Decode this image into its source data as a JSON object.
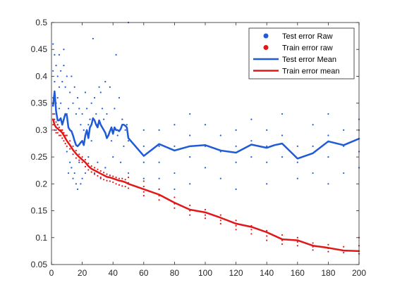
{
  "colors": {
    "test": "#1f5bd6",
    "train": "#e01818",
    "axis": "#262626",
    "background": "#ffffff"
  },
  "chart_data": {
    "type": "line",
    "title": "",
    "xlabel": "",
    "ylabel": "",
    "xlim": [
      0,
      200
    ],
    "ylim": [
      0.05,
      0.5
    ],
    "grid": false,
    "legend_position": "top-right",
    "x_ticks": [
      0,
      20,
      40,
      60,
      80,
      100,
      120,
      140,
      160,
      180,
      200
    ],
    "y_ticks": [
      0.05,
      0.1,
      0.15,
      0.2,
      0.25,
      0.3,
      0.35,
      0.4,
      0.45,
      0.5
    ],
    "legend": [
      {
        "label": "Test error Raw",
        "kind": "marker",
        "series": "test"
      },
      {
        "label": "Train error raw",
        "kind": "marker",
        "series": "train"
      },
      {
        "label": "Test error Mean",
        "kind": "line",
        "series": "test"
      },
      {
        "label": "Train error mean",
        "kind": "line",
        "series": "train"
      }
    ],
    "series": [
      {
        "name": "Test error Mean",
        "key": "test",
        "style": "line",
        "x": [
          1,
          2,
          3,
          4,
          5,
          6,
          7,
          8,
          9,
          10,
          11,
          12,
          13,
          14,
          15,
          16,
          17,
          18,
          19,
          20,
          21,
          22,
          23,
          24,
          25,
          26,
          27,
          28,
          29,
          30,
          31,
          32,
          33,
          34,
          35,
          36,
          37,
          38,
          39,
          40,
          41,
          42,
          43,
          44,
          45,
          46,
          47,
          48,
          49,
          50,
          60,
          70,
          80,
          90,
          100,
          110,
          120,
          130,
          140,
          145,
          150,
          160,
          170,
          180,
          190,
          200
        ],
        "y": [
          0.345,
          0.372,
          0.335,
          0.318,
          0.318,
          0.322,
          0.31,
          0.32,
          0.33,
          0.327,
          0.305,
          0.3,
          0.298,
          0.29,
          0.28,
          0.272,
          0.27,
          0.273,
          0.277,
          0.28,
          0.272,
          0.29,
          0.3,
          0.285,
          0.305,
          0.31,
          0.322,
          0.318,
          0.31,
          0.305,
          0.318,
          0.31,
          0.305,
          0.3,
          0.295,
          0.285,
          0.29,
          0.298,
          0.305,
          0.293,
          0.305,
          0.3,
          0.3,
          0.298,
          0.302,
          0.31,
          0.31,
          0.308,
          0.305,
          0.285,
          0.252,
          0.274,
          0.262,
          0.27,
          0.272,
          0.262,
          0.258,
          0.273,
          0.267,
          0.272,
          0.275,
          0.247,
          0.257,
          0.279,
          0.272,
          0.284
        ]
      },
      {
        "name": "Train error mean",
        "key": "train",
        "style": "line",
        "x": [
          1,
          2,
          3,
          4,
          5,
          6,
          7,
          8,
          9,
          10,
          12,
          14,
          16,
          18,
          20,
          22,
          24,
          26,
          28,
          30,
          32,
          34,
          36,
          38,
          40,
          42,
          44,
          46,
          48,
          50,
          60,
          70,
          80,
          90,
          100,
          110,
          120,
          130,
          140,
          150,
          160,
          170,
          180,
          190,
          200
        ],
        "y": [
          0.32,
          0.31,
          0.305,
          0.303,
          0.3,
          0.298,
          0.295,
          0.29,
          0.285,
          0.28,
          0.272,
          0.263,
          0.256,
          0.25,
          0.245,
          0.24,
          0.233,
          0.228,
          0.225,
          0.222,
          0.219,
          0.216,
          0.213,
          0.212,
          0.21,
          0.208,
          0.206,
          0.205,
          0.203,
          0.2,
          0.19,
          0.18,
          0.165,
          0.152,
          0.147,
          0.137,
          0.126,
          0.12,
          0.11,
          0.097,
          0.095,
          0.085,
          0.081,
          0.076,
          0.075
        ]
      },
      {
        "name": "Test error Raw",
        "key": "test",
        "style": "scatter",
        "x": [
          1,
          1,
          1,
          2,
          2,
          2,
          3,
          3,
          3,
          4,
          4,
          4,
          5,
          5,
          5,
          6,
          6,
          7,
          7,
          8,
          8,
          8,
          9,
          9,
          10,
          10,
          10,
          11,
          11,
          12,
          12,
          13,
          13,
          14,
          14,
          15,
          15,
          16,
          16,
          17,
          17,
          18,
          18,
          19,
          19,
          20,
          20,
          21,
          22,
          22,
          23,
          24,
          24,
          25,
          26,
          26,
          27,
          28,
          28,
          29,
          30,
          30,
          31,
          32,
          32,
          33,
          34,
          35,
          35,
          36,
          37,
          38,
          39,
          40,
          41,
          42,
          43,
          44,
          45,
          46,
          47,
          48,
          49,
          50,
          50,
          50,
          60,
          60,
          60,
          60,
          70,
          70,
          70,
          70,
          70,
          80,
          80,
          80,
          80,
          90,
          90,
          90,
          90,
          100,
          100,
          100,
          110,
          110,
          110,
          120,
          120,
          120,
          120,
          130,
          130,
          130,
          140,
          140,
          140,
          140,
          150,
          150,
          150,
          160,
          160,
          160,
          170,
          170,
          170,
          180,
          180,
          180,
          180,
          190,
          190,
          190,
          200,
          200,
          200,
          200
        ],
        "y": [
          0.46,
          0.41,
          0.36,
          0.44,
          0.39,
          0.33,
          0.42,
          0.35,
          0.3,
          0.4,
          0.36,
          0.31,
          0.44,
          0.38,
          0.34,
          0.41,
          0.35,
          0.39,
          0.3,
          0.45,
          0.42,
          0.32,
          0.38,
          0.29,
          0.4,
          0.33,
          0.26,
          0.34,
          0.22,
          0.37,
          0.24,
          0.4,
          0.23,
          0.35,
          0.21,
          0.38,
          0.22,
          0.33,
          0.2,
          0.36,
          0.19,
          0.34,
          0.24,
          0.31,
          0.2,
          0.33,
          0.21,
          0.3,
          0.37,
          0.22,
          0.34,
          0.31,
          0.25,
          0.32,
          0.35,
          0.28,
          0.47,
          0.36,
          0.22,
          0.33,
          0.31,
          0.24,
          0.38,
          0.37,
          0.21,
          0.34,
          0.32,
          0.39,
          0.23,
          0.33,
          0.29,
          0.38,
          0.28,
          0.25,
          0.34,
          0.44,
          0.29,
          0.36,
          0.24,
          0.32,
          0.27,
          0.3,
          0.31,
          0.5,
          0.28,
          0.22,
          0.3,
          0.27,
          0.24,
          0.21,
          0.3,
          0.27,
          0.24,
          0.21,
          0.19,
          0.31,
          0.27,
          0.22,
          0.19,
          0.33,
          0.29,
          0.25,
          0.2,
          0.31,
          0.27,
          0.23,
          0.29,
          0.26,
          0.21,
          0.3,
          0.27,
          0.24,
          0.19,
          0.32,
          0.28,
          0.25,
          0.3,
          0.27,
          0.24,
          0.2,
          0.33,
          0.29,
          0.25,
          0.27,
          0.24,
          0.21,
          0.31,
          0.27,
          0.22,
          0.33,
          0.29,
          0.25,
          0.2,
          0.3,
          0.27,
          0.22,
          0.32,
          0.3,
          0.26,
          0.23
        ]
      },
      {
        "name": "Train error raw",
        "key": "train",
        "style": "scatter",
        "x": [
          1,
          1,
          2,
          2,
          3,
          3,
          4,
          4,
          5,
          5,
          6,
          6,
          7,
          7,
          8,
          8,
          9,
          9,
          10,
          10,
          12,
          12,
          14,
          14,
          16,
          16,
          18,
          18,
          20,
          20,
          22,
          22,
          24,
          24,
          26,
          26,
          28,
          28,
          30,
          30,
          32,
          32,
          34,
          34,
          36,
          36,
          38,
          38,
          40,
          40,
          42,
          42,
          44,
          44,
          46,
          46,
          48,
          48,
          50,
          50,
          50,
          60,
          60,
          60,
          60,
          70,
          70,
          70,
          80,
          80,
          80,
          90,
          90,
          90,
          100,
          100,
          100,
          110,
          110,
          110,
          120,
          120,
          120,
          130,
          130,
          130,
          140,
          140,
          140,
          150,
          150,
          150,
          160,
          160,
          160,
          170,
          170,
          170,
          180,
          180,
          180,
          190,
          190,
          200,
          200,
          200
        ],
        "y": [
          0.33,
          0.31,
          0.32,
          0.3,
          0.315,
          0.295,
          0.31,
          0.295,
          0.305,
          0.29,
          0.3,
          0.29,
          0.3,
          0.285,
          0.295,
          0.28,
          0.29,
          0.275,
          0.29,
          0.27,
          0.28,
          0.265,
          0.27,
          0.255,
          0.262,
          0.248,
          0.255,
          0.244,
          0.25,
          0.24,
          0.245,
          0.232,
          0.238,
          0.226,
          0.233,
          0.222,
          0.23,
          0.218,
          0.227,
          0.215,
          0.224,
          0.212,
          0.221,
          0.208,
          0.218,
          0.206,
          0.216,
          0.205,
          0.214,
          0.203,
          0.212,
          0.2,
          0.21,
          0.198,
          0.21,
          0.196,
          0.208,
          0.195,
          0.212,
          0.202,
          0.192,
          0.205,
          0.195,
          0.185,
          0.178,
          0.19,
          0.178,
          0.17,
          0.175,
          0.163,
          0.155,
          0.16,
          0.15,
          0.142,
          0.152,
          0.142,
          0.136,
          0.142,
          0.132,
          0.126,
          0.132,
          0.122,
          0.115,
          0.122,
          0.115,
          0.107,
          0.113,
          0.103,
          0.095,
          0.105,
          0.095,
          0.088,
          0.1,
          0.092,
          0.085,
          0.09,
          0.083,
          0.077,
          0.087,
          0.08,
          0.074,
          0.083,
          0.072,
          0.1,
          0.085,
          0.07
        ]
      }
    ]
  }
}
